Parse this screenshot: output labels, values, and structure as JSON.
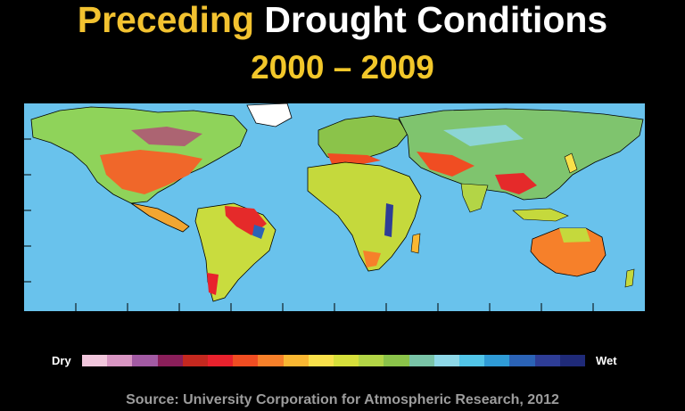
{
  "title": {
    "part1": "Preceding",
    "part2": " Drought Conditions"
  },
  "years": "2000 – 2009",
  "legend": {
    "dry_label": "Dry",
    "wet_label": "Wet",
    "colors": [
      "#f1c6dc",
      "#d895c2",
      "#a25aa3",
      "#8a1f5a",
      "#c4281f",
      "#e8222d",
      "#f04d22",
      "#f6802a",
      "#f9b732",
      "#f8e04a",
      "#d6df3b",
      "#b3d546",
      "#8bc34a",
      "#79c3a7",
      "#8ed8e8",
      "#52c5e8",
      "#2f9bd6",
      "#2b63b6",
      "#2e3d96",
      "#1f2a78"
    ]
  },
  "source": "Source: University Corporation for Atmospheric Research, 2012"
}
